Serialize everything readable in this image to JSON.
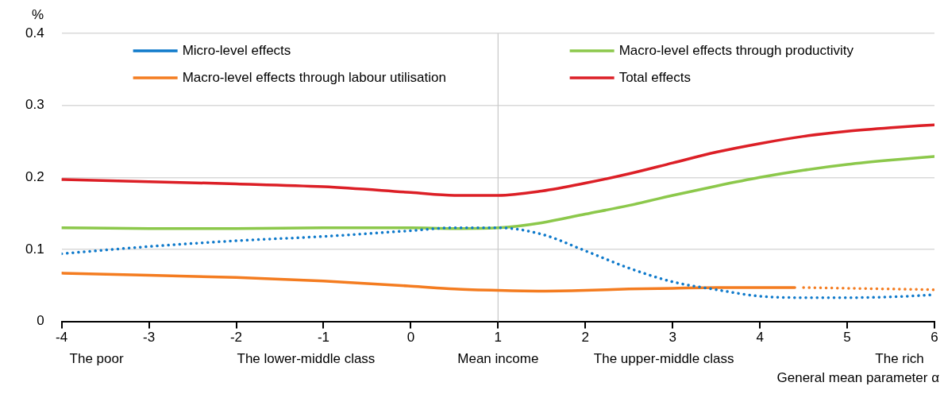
{
  "chart_data": {
    "type": "line",
    "x": [
      -4,
      -3,
      -2,
      -1,
      0,
      0.5,
      1,
      1.5,
      2,
      2.5,
      3,
      3.5,
      4,
      4.5,
      5,
      5.5,
      6
    ],
    "series": [
      {
        "name": "Micro-level effects",
        "color": "#0f7acb",
        "line_style": "dotted",
        "values": [
          0.094,
          0.104,
          0.112,
          0.118,
          0.126,
          0.13,
          0.13,
          0.121,
          0.098,
          0.074,
          0.055,
          0.044,
          0.035,
          0.033,
          0.033,
          0.034,
          0.037
        ]
      },
      {
        "name": "Macro-level effects through labour utilisation",
        "color": "#f47c20",
        "x": [
          -4,
          -3,
          -2,
          -1,
          0,
          0.5,
          1,
          1.5,
          2,
          2.5,
          3,
          3.5,
          4,
          4.4
        ],
        "values": [
          0.067,
          0.064,
          0.061,
          0.056,
          0.049,
          0.045,
          0.043,
          0.042,
          0.043,
          0.045,
          0.046,
          0.047,
          0.047,
          0.047
        ]
      },
      {
        "name": "Macro-level effects through productivity",
        "color": "#8cc84b",
        "values": [
          0.13,
          0.129,
          0.129,
          0.13,
          0.13,
          0.129,
          0.13,
          0.137,
          0.149,
          0.161,
          0.175,
          0.188,
          0.2,
          0.21,
          0.218,
          0.224,
          0.229
        ]
      },
      {
        "name": "Total effects",
        "color": "#dc1f26",
        "values": [
          0.197,
          0.194,
          0.191,
          0.187,
          0.179,
          0.175,
          0.175,
          0.181,
          0.192,
          0.205,
          0.22,
          0.235,
          0.247,
          0.257,
          0.264,
          0.269,
          0.273
        ]
      },
      {
        "color": "#f47c20",
        "line_style": "dotted",
        "x": [
          4.5,
          5,
          5.5,
          6
        ],
        "values": [
          0.047,
          0.046,
          0.045,
          0.044
        ]
      }
    ],
    "xlim": [
      -4,
      6
    ],
    "xticks": [
      -4,
      -3,
      -2,
      -1,
      0,
      1,
      2,
      3,
      4,
      5,
      6
    ],
    "ylim": [
      0,
      0.4
    ],
    "yticks": [
      0,
      0.1,
      0.2,
      0.3,
      0.4
    ],
    "ylabel": "%",
    "xlabel": "General mean parameter α",
    "ref_lines": [
      {
        "axis": "x",
        "value": 1,
        "color": "#c8c8c8"
      }
    ],
    "annotations": [
      "The poor",
      "The lower-middle class",
      "Mean income",
      "The upper-middle class",
      "The rich"
    ],
    "grid": "y",
    "legend": "top",
    "marker": "none"
  }
}
